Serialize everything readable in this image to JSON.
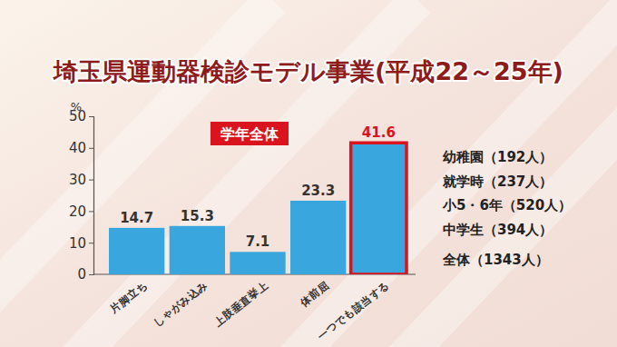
{
  "chart_data": {
    "type": "bar",
    "title": "埼玉県運動器検診モデル事業(平成22～25年)",
    "subtitle": "学年全体",
    "y_label": "%",
    "categories": [
      "片脚立ち",
      "しゃがみ込み",
      "上肢垂直挙上",
      "体前屈",
      "一つでも該当する"
    ],
    "values": [
      14.7,
      15.3,
      7.1,
      23.3,
      41.6
    ],
    "color": "#3aa6de",
    "ylim": [
      0,
      50
    ],
    "yticks": [
      0,
      10,
      20,
      30,
      40,
      50
    ],
    "grid": false,
    "data_labels": true,
    "annotations": [
      "幼稚園（192人）",
      "就学時（237人）",
      "小5・6年（520人）",
      "中学生（394人）",
      "全体（1343人）"
    ]
  }
}
